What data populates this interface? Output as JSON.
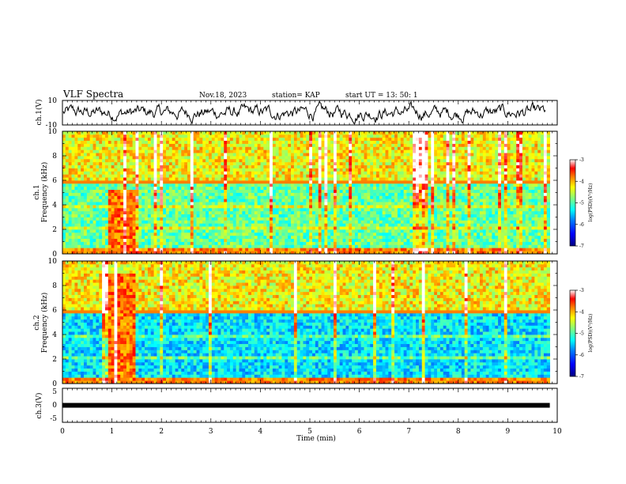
{
  "header": {
    "title": "VLF Spectra",
    "date": "Nov.18, 2023",
    "station": "station= KAP",
    "start": "start  UT  =   13: 50: 1"
  },
  "colors": {
    "trace": "#000000",
    "background": "#ffffff",
    "colormap": [
      "#000080",
      "#0000ff",
      "#0080ff",
      "#00ffff",
      "#80ff80",
      "#ffff00",
      "#ff8000",
      "#ff0000",
      "#ffffff"
    ]
  },
  "chart_data": [
    {
      "type": "line",
      "ylabel": "ch.1(V)",
      "ylim": [
        -10,
        10
      ],
      "y_ticks": [
        "10",
        "-10"
      ],
      "xlim": [
        0,
        10
      ],
      "description_series": "waveform amplitude vs time"
    },
    {
      "type": "heatmap",
      "ylabel_channel": "ch.1",
      "ylabel": "Frequency (kHz)",
      "ylim": [
        0,
        10
      ],
      "y_ticks": [
        "0",
        "2",
        "4",
        "6",
        "8",
        "10"
      ],
      "xlim": [
        0,
        9.85
      ],
      "colorbar": {
        "label": "log(PSD)(V²/Hz)",
        "range": [
          -7,
          -3
        ],
        "ticks": [
          "-3",
          "-4",
          "-5",
          "-6",
          "-7"
        ]
      },
      "features": {
        "burst_start_min": 0.9,
        "burst_end_min": 1.5,
        "burst_top_khz": 5.3
      }
    },
    {
      "type": "heatmap",
      "ylabel_channel": "ch.2",
      "ylabel": "Frequency (kHz)",
      "ylim": [
        0,
        10
      ],
      "y_ticks": [
        "0",
        "2",
        "4",
        "6",
        "8",
        "10"
      ],
      "xlim": [
        0,
        9.85
      ],
      "colorbar": {
        "label": "log(PSD)(V²/Hz)",
        "range": [
          -7,
          -3
        ],
        "ticks": [
          "-3",
          "-4",
          "-5",
          "-6",
          "-7"
        ]
      },
      "features": {
        "burst_start_min": 0.9,
        "burst_end_min": 1.5,
        "burst_top_khz": 9.0
      }
    },
    {
      "type": "line",
      "ylabel": "ch.3(V)",
      "ylim": [
        -5,
        5
      ],
      "y_ticks": [
        "5",
        "0",
        "-5"
      ],
      "xlim": [
        0,
        10
      ],
      "series_level": 0
    }
  ],
  "x_axis": {
    "label": "Time (min)",
    "ticks": [
      "0",
      "1",
      "2",
      "3",
      "4",
      "5",
      "6",
      "7",
      "8",
      "9",
      "10"
    ]
  }
}
